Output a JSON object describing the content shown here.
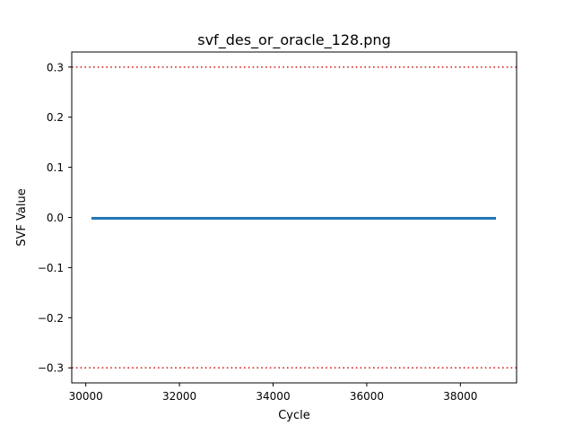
{
  "chart_data": {
    "type": "line",
    "title": "svf_des_or_oracle_128.png",
    "xlabel": "Cycle",
    "ylabel": "SVF Value",
    "xlim": [
      29700,
      39200
    ],
    "ylim": [
      -0.33,
      0.33
    ],
    "x_ticks": [
      30000,
      32000,
      34000,
      36000,
      38000
    ],
    "y_ticks": [
      -0.3,
      -0.2,
      -0.1,
      0.0,
      0.1,
      0.2,
      0.3
    ],
    "x_tick_labels": [
      "30000",
      "32000",
      "34000",
      "36000",
      "38000"
    ],
    "y_tick_labels": [
      "−0.3",
      "−0.2",
      "−0.1",
      "0.0",
      "0.1",
      "0.2",
      "0.3"
    ],
    "grid": false,
    "series": [
      {
        "color": "#1f77b4",
        "x_range": [
          30120,
          38760
        ],
        "y_center": -0.001,
        "y_band": [
          -0.003,
          0.001
        ]
      }
    ],
    "thresholds": [
      {
        "y": 0.3,
        "color": "#d62728",
        "style": "dotted"
      },
      {
        "y": -0.3,
        "color": "#d62728",
        "style": "dotted"
      }
    ]
  }
}
